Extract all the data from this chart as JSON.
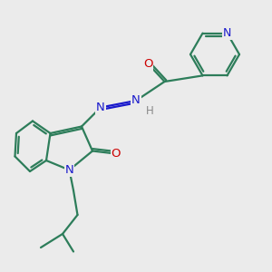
{
  "bg_color": "#ebebeb",
  "bond_color": "#2d7d5a",
  "N_color": "#1a1acc",
  "O_color": "#cc0000",
  "H_color": "#888888",
  "line_width": 1.6,
  "figsize": [
    3.0,
    3.0
  ],
  "dpi": 100,
  "xlim": [
    0,
    10
  ],
  "ylim": [
    0,
    10
  ]
}
